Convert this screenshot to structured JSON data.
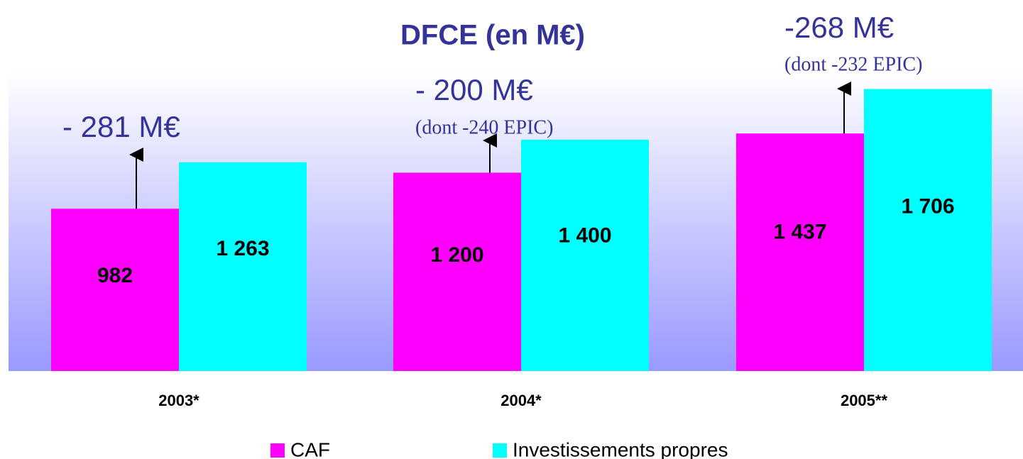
{
  "chart_data": {
    "type": "bar",
    "title": "DFCE (en M€)",
    "categories": [
      "2003*",
      "2004*",
      "2005**"
    ],
    "series": [
      {
        "name": "CAF",
        "color": "#ff00ff",
        "values": [
          982,
          1200,
          1437
        ],
        "value_labels": [
          "982",
          "1 200",
          "1 437"
        ]
      },
      {
        "name": "Investissements propres",
        "color": "#00ffff",
        "values": [
          1263,
          1400,
          1706
        ],
        "value_labels": [
          "1 263",
          "1 400",
          "1 706"
        ]
      }
    ],
    "ylim": [
      0,
      2000
    ],
    "annotations": [
      "- 281 M€",
      "- 200 M€",
      "(dont -240 EPIC)",
      "-268 M€",
      "(dont -232 EPIC)"
    ],
    "legend": "bottom"
  }
}
